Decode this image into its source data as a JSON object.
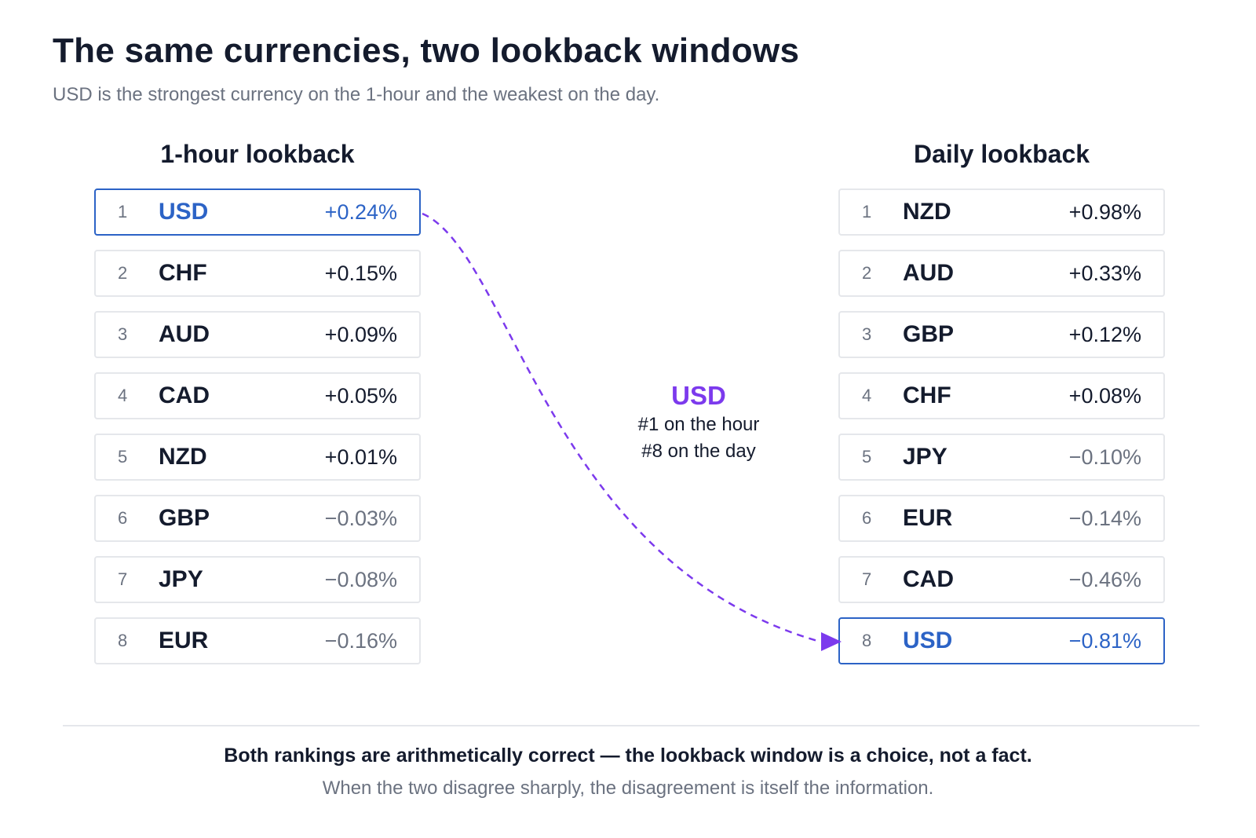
{
  "title": "The same currencies, two lookback windows",
  "subtitle": "USD is the strongest currency on the 1-hour and the weakest on the day.",
  "colors": {
    "highlight": "#2c63c6",
    "accent": "#7c3aed",
    "negative_text": "#6b7280",
    "text": "#141b2d",
    "border": "#e5e7eb"
  },
  "hour": {
    "heading": "1-hour lookback",
    "rows": [
      {
        "rank": "1",
        "code": "USD",
        "change": "+0.24%",
        "highlight": true
      },
      {
        "rank": "2",
        "code": "CHF",
        "change": "+0.15%"
      },
      {
        "rank": "3",
        "code": "AUD",
        "change": "+0.09%"
      },
      {
        "rank": "4",
        "code": "CAD",
        "change": "+0.05%"
      },
      {
        "rank": "5",
        "code": "NZD",
        "change": "+0.01%"
      },
      {
        "rank": "6",
        "code": "GBP",
        "change": "−0.03%"
      },
      {
        "rank": "7",
        "code": "JPY",
        "change": "−0.08%"
      },
      {
        "rank": "8",
        "code": "EUR",
        "change": "−0.16%"
      }
    ]
  },
  "daily": {
    "heading": "Daily lookback",
    "rows": [
      {
        "rank": "1",
        "code": "NZD",
        "change": "+0.98%"
      },
      {
        "rank": "2",
        "code": "AUD",
        "change": "+0.33%"
      },
      {
        "rank": "3",
        "code": "GBP",
        "change": "+0.12%"
      },
      {
        "rank": "4",
        "code": "CHF",
        "change": "+0.08%"
      },
      {
        "rank": "5",
        "code": "JPY",
        "change": "−0.10%"
      },
      {
        "rank": "6",
        "code": "EUR",
        "change": "−0.14%"
      },
      {
        "rank": "7",
        "code": "CAD",
        "change": "−0.46%"
      },
      {
        "rank": "8",
        "code": "USD",
        "change": "−0.81%",
        "highlight": true
      }
    ]
  },
  "callout": {
    "code": "USD",
    "line1": "#1 on the hour",
    "line2": "#8 on the day"
  },
  "footer": {
    "main": "Both rankings are arithmetically correct — the lookback window is a choice, not a fact.",
    "sub": "When the two disagree sharply, the disagreement is itself the information."
  }
}
